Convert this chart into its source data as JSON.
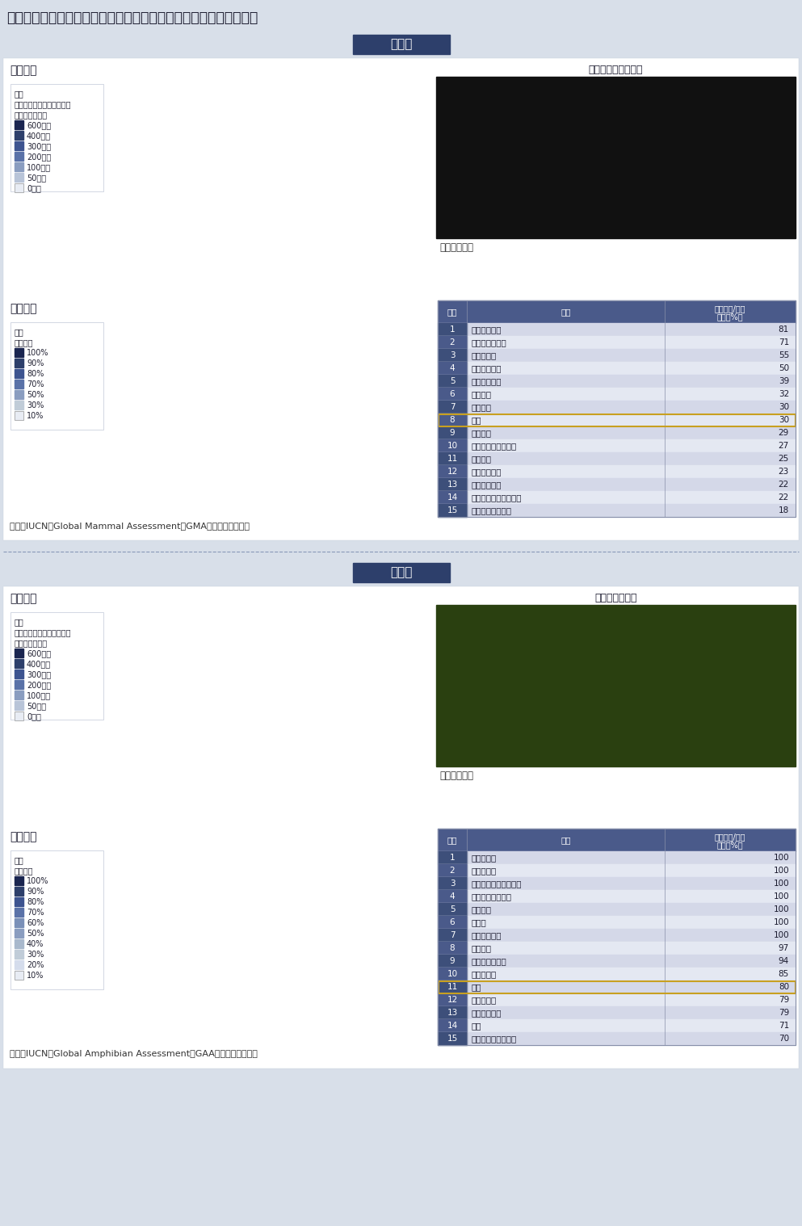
{
  "title": "世界の哺乳類及び両生類の分布状況（国別の固有種数／生息種数）",
  "bg_color": "#d8dfe9",
  "panel_bg": "#ffffff",
  "mammal_label": "哺乳類",
  "amphibian_label": "両生類",
  "header_bg": "#2d3f6b",
  "mammal_animal_name": "イリオモテヤマネコ",
  "amphibian_animal_name": "イシカワガエル",
  "photo_credit": "写真：環境省",
  "mammal_source": "資料：IUCN、Global Mammal Assessment（GMA）より環境省作成",
  "amphibian_source": "資料：IUCN、Global Amphibian Assessment（GAA）より環境省作成",
  "living_species_label": "生息種数",
  "endemic_rate_label": "固有種率",
  "legend_dense_label1": "色の濃い国は、種が多様で",
  "legend_dense_label2": "あることを示す",
  "legend_rate_label": "固有種率",
  "mammal_living_legend": [
    "600種～",
    "400種～",
    "300種～",
    "200種～",
    "100種～",
    "50種～",
    "0種～"
  ],
  "mammal_endemic_legend": [
    "100%",
    "90%",
    "80%",
    "70%",
    "50%",
    "30%",
    "10%"
  ],
  "amphibian_living_legend": [
    "600種～",
    "400種～",
    "300種～",
    "200種～",
    "100種～",
    "50種～",
    "0種～"
  ],
  "amphibian_endemic_legend": [
    "100%",
    "90%",
    "80%",
    "70%",
    "60%",
    "50%",
    "40%",
    "30%",
    "20%",
    "10%"
  ],
  "table_header_bg": "#4a5a8a",
  "table_row_odd": "#d4d8e8",
  "table_row_even": "#e4e8f2",
  "table_rank_odd": "#3d4f7a",
  "table_rank_even": "#4a5a8a",
  "table_highlight_border": "#c8a020",
  "rank_col": "順位",
  "country_col": "国名",
  "ratio_col_line1": "固有種数/生息",
  "ratio_col_line2": "種数（%）",
  "mammal_table": [
    {
      "rank": "1",
      "country": "マダガスカル",
      "ratio": "81"
    },
    {
      "rank": "2",
      "country": "オーストラリア",
      "ratio": "71"
    },
    {
      "rank": "3",
      "country": "フィリピン",
      "ratio": "55"
    },
    {
      "rank": "4",
      "country": "クリスマス島",
      "ratio": "50"
    },
    {
      "rank": "5",
      "country": "インドネシア",
      "ratio": "39"
    },
    {
      "rank": "6",
      "country": "キューバ",
      "ratio": "32"
    },
    {
      "rank": "7",
      "country": "メキシコ",
      "ratio": "30"
    },
    {
      "rank": "8",
      "country": "日本",
      "ratio": "30",
      "highlight": true
    },
    {
      "rank": "9",
      "country": "ブラジル",
      "ratio": "29"
    },
    {
      "rank": "10",
      "country": "パプアニューギニア",
      "ratio": "27"
    },
    {
      "rank": "11",
      "country": "アメリカ",
      "ratio": "25"
    },
    {
      "rank": "12",
      "country": "ソロモン諸島",
      "ratio": "23"
    },
    {
      "rank": "13",
      "country": "アルゼンチン",
      "ratio": "22"
    },
    {
      "rank": "14",
      "country": "サントメ・プリンシペ",
      "ratio": "22"
    },
    {
      "rank": "15",
      "country": "ニューカレドニア",
      "ratio": "18"
    }
  ],
  "amphibian_table": [
    {
      "rank": "1",
      "country": "ジャマイカ",
      "ratio": "100"
    },
    {
      "rank": "2",
      "country": "セイシェル",
      "ratio": "100"
    },
    {
      "rank": "3",
      "country": "サントメ・プリンシペ",
      "ratio": "100"
    },
    {
      "rank": "4",
      "country": "ニュージーランド",
      "ratio": "100"
    },
    {
      "rank": "5",
      "country": "フィジー",
      "ratio": "100"
    },
    {
      "rank": "6",
      "country": "パラオ",
      "ratio": "100"
    },
    {
      "rank": "7",
      "country": "マダガスカル",
      "ratio": "100"
    },
    {
      "rank": "8",
      "country": "キューバ",
      "ratio": "97"
    },
    {
      "rank": "9",
      "country": "オーストラリア",
      "ratio": "94"
    },
    {
      "rank": "10",
      "country": "スリランカ",
      "ratio": "85"
    },
    {
      "rank": "11",
      "country": "日本",
      "ratio": "80",
      "highlight": true
    },
    {
      "rank": "12",
      "country": "フィリピン",
      "ratio": "79"
    },
    {
      "rank": "13",
      "country": "プエルトリコ",
      "ratio": "79"
    },
    {
      "rank": "14",
      "country": "チリ",
      "ratio": "71"
    },
    {
      "rank": "15",
      "country": "パプアニューギニア",
      "ratio": "70"
    }
  ],
  "map_ocean_color": "#ccd6e8",
  "map_land_base": "#dde3ef",
  "map_land_line": "#a0aac0",
  "living_colors": [
    "#1a2550",
    "#2d3f6b",
    "#3d5490",
    "#5a72a8",
    "#8a9dc0",
    "#b8c4d8",
    "#e8ecf4"
  ],
  "endemic_colors_mammal": [
    "#1a2550",
    "#2d3f6b",
    "#3d5490",
    "#5a72a8",
    "#8a9dc0",
    "#c0ccd8",
    "#e8ecf4"
  ],
  "endemic_colors_amp": [
    "#1a2550",
    "#2d3f6b",
    "#3d5490",
    "#5a72a8",
    "#7a90b8",
    "#8a9dc0",
    "#a8b8cc",
    "#c0ccd8",
    "#d4dcec",
    "#e8ecf4"
  ]
}
